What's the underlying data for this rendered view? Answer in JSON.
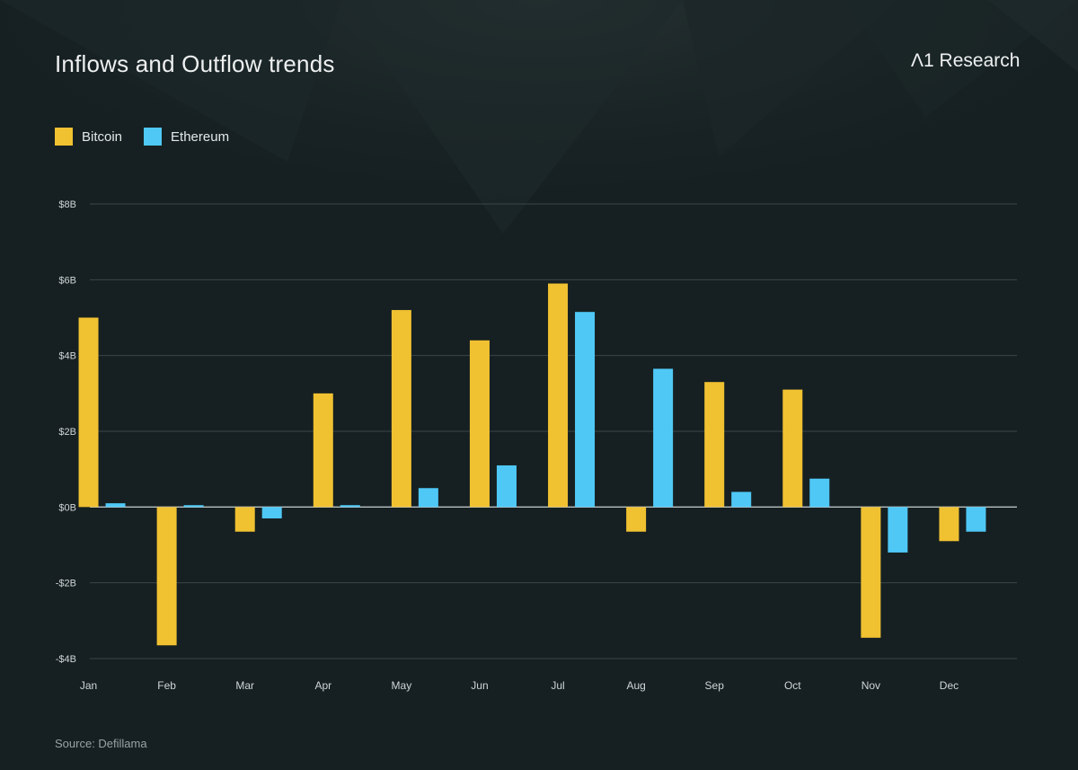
{
  "header": {
    "title": "Inflows and Outflow trends",
    "brand": "Λ1 Research"
  },
  "footer": {
    "source": "Source: Defillama"
  },
  "colors": {
    "background": "#162022",
    "bitcoin": "#f0c131",
    "ethereum": "#4fc8f6",
    "grid": "#3a4648",
    "zero_line": "#b9c0c1",
    "tick_text": "#d0d5d6"
  },
  "chart_data": {
    "type": "bar",
    "title": "Inflows and Outflow trends",
    "xlabel": "",
    "ylabel": "",
    "categories": [
      "Jan",
      "Feb",
      "Mar",
      "Apr",
      "May",
      "Jun",
      "Jul",
      "Aug",
      "Sep",
      "Oct",
      "Nov",
      "Dec"
    ],
    "series": [
      {
        "name": "Bitcoin",
        "color": "#f0c131",
        "values": [
          5.0,
          -3.65,
          -0.65,
          3.0,
          5.2,
          4.4,
          5.9,
          -0.65,
          3.3,
          3.1,
          -3.45,
          -0.9
        ]
      },
      {
        "name": "Ethereum",
        "color": "#4fc8f6",
        "values": [
          0.1,
          0.05,
          -0.3,
          0.05,
          0.5,
          1.1,
          5.15,
          3.65,
          0.4,
          0.75,
          -1.2,
          -0.65
        ]
      }
    ],
    "yticks": [
      {
        "value": 8,
        "label": "$8B"
      },
      {
        "value": 6,
        "label": "$6B"
      },
      {
        "value": 4,
        "label": "$4B"
      },
      {
        "value": 2,
        "label": "$2B"
      },
      {
        "value": 0,
        "label": "$0B"
      },
      {
        "value": -2,
        "label": "-$2B"
      },
      {
        "value": -4,
        "label": "-$4B"
      }
    ],
    "ylim": [
      -4,
      8
    ],
    "grid": true,
    "legend": "top-left"
  }
}
